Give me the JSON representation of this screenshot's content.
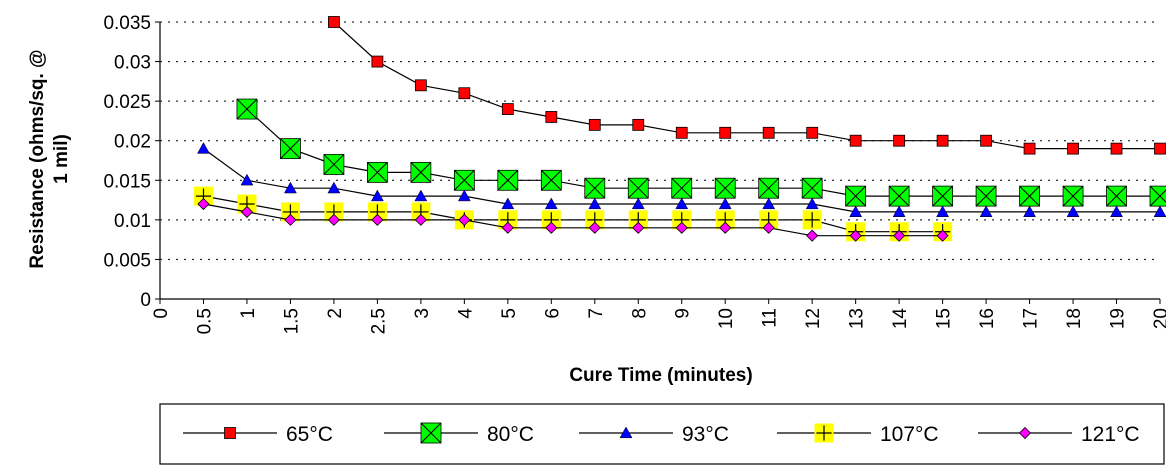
{
  "chart_data": {
    "type": "line",
    "xlabel": "Cure Time (minutes)",
    "ylabel_lines": [
      "Resistance (ohms/sq. @",
      "1 mil)"
    ],
    "categories": [
      "0",
      "0.5",
      "1",
      "1.5",
      "2",
      "2.5",
      "3",
      "4",
      "5",
      "6",
      "7",
      "8",
      "9",
      "10",
      "11",
      "12",
      "13",
      "14",
      "15",
      "16",
      "17",
      "18",
      "19",
      "20"
    ],
    "yticks": [
      "0",
      "0.005",
      "0.01",
      "0.015",
      "0.02",
      "0.025",
      "0.03",
      "0.035"
    ],
    "ylim": [
      0,
      0.035
    ],
    "grid": "horizontal dotted",
    "legend_position": "bottom",
    "series": [
      {
        "name": "65°C",
        "marker": "square",
        "color": "#ff0000",
        "values": [
          null,
          null,
          null,
          null,
          0.035,
          0.03,
          0.027,
          0.026,
          0.024,
          0.023,
          0.022,
          0.022,
          0.021,
          0.021,
          0.021,
          0.021,
          0.02,
          0.02,
          0.02,
          0.02,
          0.019,
          0.019,
          0.019,
          0.019
        ]
      },
      {
        "name": "80°C",
        "marker": "x-square",
        "color": "#00ff00",
        "values": [
          null,
          null,
          0.024,
          0.019,
          0.017,
          0.016,
          0.016,
          0.015,
          0.015,
          0.015,
          0.014,
          0.014,
          0.014,
          0.014,
          0.014,
          0.014,
          0.013,
          0.013,
          0.013,
          0.013,
          0.013,
          0.013,
          0.013,
          0.013
        ]
      },
      {
        "name": "93°C",
        "marker": "triangle",
        "color": "#0000ff",
        "values": [
          null,
          0.019,
          0.015,
          0.014,
          0.014,
          0.013,
          0.013,
          0.013,
          0.012,
          0.012,
          0.012,
          0.012,
          0.012,
          0.012,
          0.012,
          0.012,
          0.011,
          0.011,
          0.011,
          0.011,
          0.011,
          0.011,
          0.011,
          0.011
        ]
      },
      {
        "name": "107°C",
        "marker": "plus-square",
        "color": "#ffff00",
        "values": [
          null,
          0.013,
          0.012,
          0.011,
          0.011,
          0.011,
          0.011,
          0.01,
          0.01,
          0.01,
          0.01,
          0.01,
          0.01,
          0.01,
          0.01,
          0.01,
          0.0085,
          0.0085,
          0.0085,
          null,
          null,
          null,
          null,
          null
        ]
      },
      {
        "name": "121°C",
        "marker": "diamond",
        "color": "#ff00ff",
        "values": [
          null,
          0.012,
          0.011,
          0.01,
          0.01,
          0.01,
          0.01,
          0.01,
          0.009,
          0.009,
          0.009,
          0.009,
          0.009,
          0.009,
          0.009,
          0.008,
          0.008,
          0.008,
          0.008,
          null,
          null,
          null,
          null,
          null
        ]
      }
    ]
  }
}
